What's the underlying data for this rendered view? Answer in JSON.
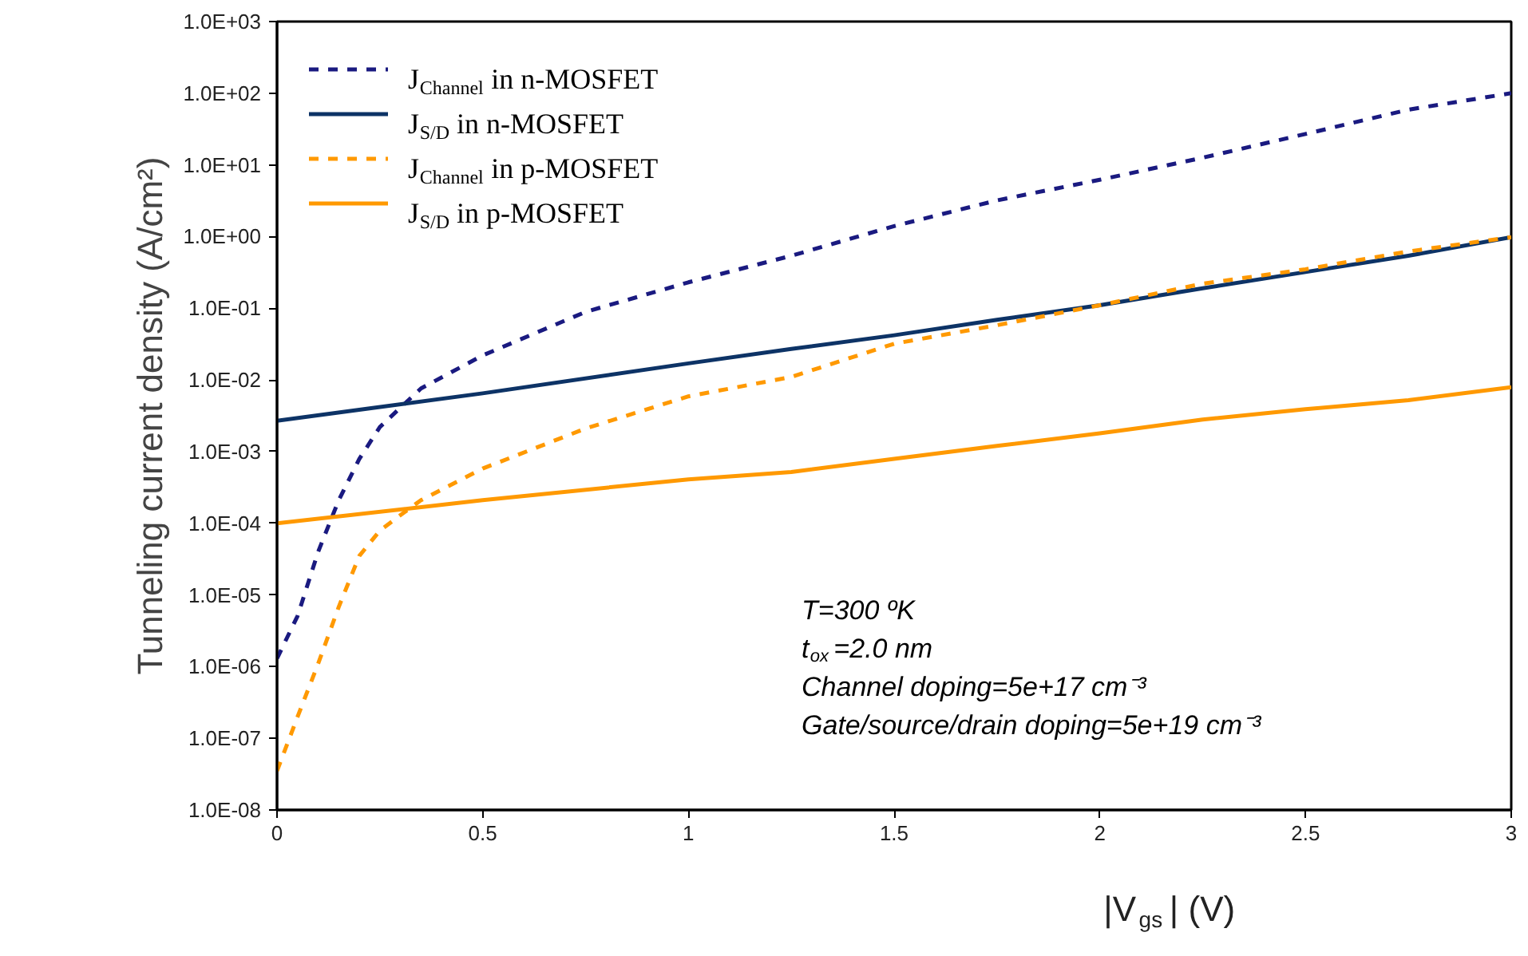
{
  "chart_data": {
    "type": "line",
    "xlabel": "|V$_{gs}$| (V)",
    "ylabel": "Tunneling current density (A/cm²)",
    "log": "y",
    "xlim": [
      0,
      3
    ],
    "ylim": [
      1e-08,
      1000
    ],
    "xticks": [
      0,
      0.5,
      1,
      1.5,
      2,
      2.5,
      3
    ],
    "yticks": [
      {
        "value": 1e-08,
        "label": "1.0E-08"
      },
      {
        "value": 1e-07,
        "label": "1.0E-07"
      },
      {
        "value": 1e-06,
        "label": "1.0E-06"
      },
      {
        "value": 1e-05,
        "label": "1.0E-05"
      },
      {
        "value": 0.0001,
        "label": "1.0E-04"
      },
      {
        "value": 0.001,
        "label": "1.0E-03"
      },
      {
        "value": 0.01,
        "label": "1.0E-02"
      },
      {
        "value": 0.1,
        "label": "1.0E-01"
      },
      {
        "value": 1,
        "label": "1.0E+00"
      },
      {
        "value": 10,
        "label": "1.0E+01"
      },
      {
        "value": 100,
        "label": "1.0E+02"
      },
      {
        "value": 1000,
        "label": "1.0E+03"
      }
    ],
    "grid": false,
    "legend": "top left",
    "marker": "none",
    "series": [
      {
        "name": "J$_{Channel}$ in n-MOSFET",
        "color": "#1a1a80",
        "line_style": "dashed",
        "x": [
          0,
          0.05,
          0.1,
          0.15,
          0.2,
          0.25,
          0.3,
          0.35,
          0.5,
          0.75,
          1,
          1.25,
          1.5,
          1.75,
          2,
          2.25,
          2.5,
          2.75,
          3
        ],
        "values": [
          1.3e-06,
          5.1e-06,
          4e-05,
          0.00021,
          0.00079,
          0.0022,
          0.0041,
          0.0076,
          0.022,
          0.089,
          0.23,
          0.54,
          1.4,
          3.2,
          6.2,
          12.6,
          27,
          59,
          100
        ]
      },
      {
        "name": "J$_{S/D}$ in n-MOSFET",
        "color": "#0d3366",
        "line_style": "solid",
        "x": [
          0,
          0.5,
          1,
          1.25,
          1.5,
          1.75,
          2,
          2.25,
          2.5,
          2.75,
          3
        ],
        "values": [
          0.0027,
          0.0065,
          0.017,
          0.027,
          0.042,
          0.069,
          0.11,
          0.19,
          0.32,
          0.54,
          0.98
        ]
      },
      {
        "name": "J$_{Channel}$ in p-MOSFET",
        "color": "#ff9900",
        "line_style": "dashed",
        "x": [
          0,
          0.05,
          0.1,
          0.15,
          0.2,
          0.25,
          0.3,
          0.35,
          0.5,
          0.75,
          1,
          1.25,
          1.5,
          1.75,
          2,
          2.25,
          2.5,
          2.75,
          3
        ],
        "values": [
          3.5e-08,
          2e-07,
          1.1e-06,
          6.8e-06,
          3.5e-05,
          7.9e-05,
          0.00013,
          0.00021,
          0.00058,
          0.0021,
          0.0059,
          0.011,
          0.032,
          0.058,
          0.11,
          0.22,
          0.35,
          0.62,
          0.98
        ]
      },
      {
        "name": "J$_{S/D}$ in p-MOSFET",
        "color": "#ff9900",
        "line_style": "solid",
        "x": [
          0,
          0.5,
          1,
          1.25,
          1.5,
          1.75,
          2,
          2.25,
          2.5,
          2.75,
          3
        ],
        "values": [
          0.0001,
          0.00021,
          0.00041,
          0.00052,
          0.00079,
          0.0012,
          0.0018,
          0.0028,
          0.0039,
          0.0052,
          0.0079
        ]
      }
    ],
    "annotations": [
      "T=300 ºK",
      "t$_{ox}$=2.0 nm",
      "Channel doping=5e+17 cm⁻³",
      "Gate/source/drain doping=5e+19 cm⁻³"
    ]
  }
}
